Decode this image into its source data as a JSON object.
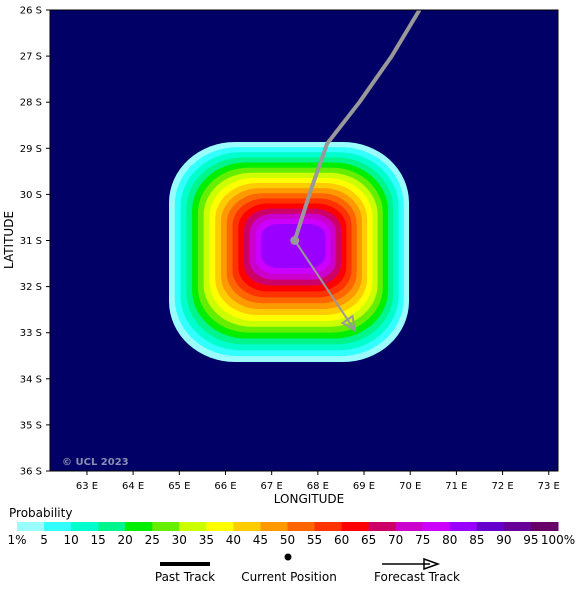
{
  "map": {
    "background_color": "#000066",
    "copyright": "© UCL 2023",
    "lon_ticks": [
      "63 E",
      "64 E",
      "65 E",
      "66 E",
      "67 E",
      "68 E",
      "69 E",
      "70 E",
      "71 E",
      "72 E",
      "73 E"
    ],
    "lat_ticks": [
      "26 S",
      "27 S",
      "28 S",
      "29 S",
      "30 S",
      "31 S",
      "32 S",
      "33 S",
      "34 S",
      "35 S",
      "36 S"
    ],
    "xlabel": "LONGITUDE",
    "ylabel": "LATITUDE",
    "lon_range": [
      62.2,
      73.2
    ],
    "lat_range": [
      26,
      36
    ]
  },
  "probability": {
    "title": "Probability",
    "labels": [
      "1%",
      "5",
      "10",
      "15",
      "20",
      "25",
      "30",
      "35",
      "40",
      "45",
      "50",
      "55",
      "60",
      "65",
      "70",
      "75",
      "80",
      "85",
      "90",
      "95",
      "100%"
    ],
    "colors": [
      "#9afcfc",
      "#33ffff",
      "#00ffcc",
      "#00f58c",
      "#00ee00",
      "#66ee00",
      "#ccff00",
      "#ffff00",
      "#ffcc00",
      "#ff9900",
      "#ff6600",
      "#ff3300",
      "#ff0000",
      "#cc0066",
      "#cc00cc",
      "#cc00ff",
      "#9900ff",
      "#6600cc",
      "#660099",
      "#660066"
    ]
  },
  "track": {
    "past": [
      [
        70.2,
        26.0
      ],
      [
        69.6,
        27.0
      ],
      [
        68.9,
        28.0
      ],
      [
        68.2,
        28.9
      ],
      [
        67.85,
        29.9
      ],
      [
        67.5,
        31.0
      ]
    ],
    "current": [
      67.5,
      31.0
    ],
    "forecast": [
      [
        67.5,
        31.0
      ],
      [
        68.2,
        32.05
      ],
      [
        68.8,
        32.95
      ]
    ],
    "color": "#999999"
  },
  "legend": {
    "past_label": "Past Track",
    "current_label": "Current Position",
    "forecast_label": "Forecast Track"
  }
}
